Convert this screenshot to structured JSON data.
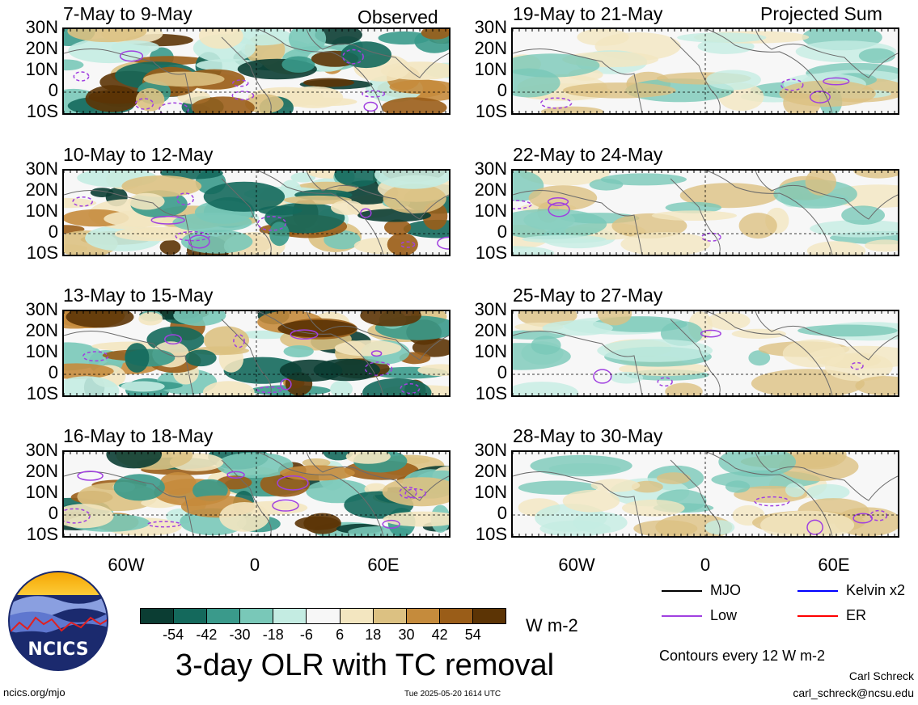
{
  "panels_left": [
    {
      "title": "7-May to 9-May",
      "tag": "Observed"
    },
    {
      "title": "10-May to 12-May",
      "tag": ""
    },
    {
      "title": "13-May to 15-May",
      "tag": ""
    },
    {
      "title": "16-May to 18-May",
      "tag": ""
    }
  ],
  "panels_right": [
    {
      "title": "19-May to 21-May",
      "tag": "Projected Sum"
    },
    {
      "title": "22-May to 24-May",
      "tag": ""
    },
    {
      "title": "25-May to 27-May",
      "tag": ""
    },
    {
      "title": "28-May to 30-May",
      "tag": ""
    }
  ],
  "lat_labels": [
    "30N",
    "20N",
    "10N",
    "0",
    "10S"
  ],
  "lon_labels": [
    "60W",
    "0",
    "60E"
  ],
  "colorbar": {
    "labels": [
      "-54",
      "-42",
      "-30",
      "-18",
      "-6",
      "6",
      "18",
      "30",
      "42",
      "54"
    ],
    "colors": [
      "#0b3d33",
      "#14695c",
      "#3a9a8b",
      "#79c8b8",
      "#c4ece2",
      "#f7f7f7",
      "#f3e6c0",
      "#dcc182",
      "#c58b3c",
      "#9a5d18",
      "#5c3405"
    ],
    "units": "W m-2"
  },
  "legend": {
    "items": [
      {
        "label": "MJO",
        "color": "#000000"
      },
      {
        "label": "Kelvin x2",
        "color": "#0000ff"
      },
      {
        "label": "Low",
        "color": "#a040e0"
      },
      {
        "label": "ER",
        "color": "#ff0000"
      }
    ],
    "contours_note": "Contours every 12 W m-2"
  },
  "title": "3-day OLR with TC removal",
  "logo_text": "NCICS",
  "footer": {
    "url": "ncics.org/mjo",
    "timestamp": "Tue 2025-05-20 1614 UTC",
    "author": "Carl Schreck",
    "email": "carl_schreck@ncsu.edu"
  }
}
